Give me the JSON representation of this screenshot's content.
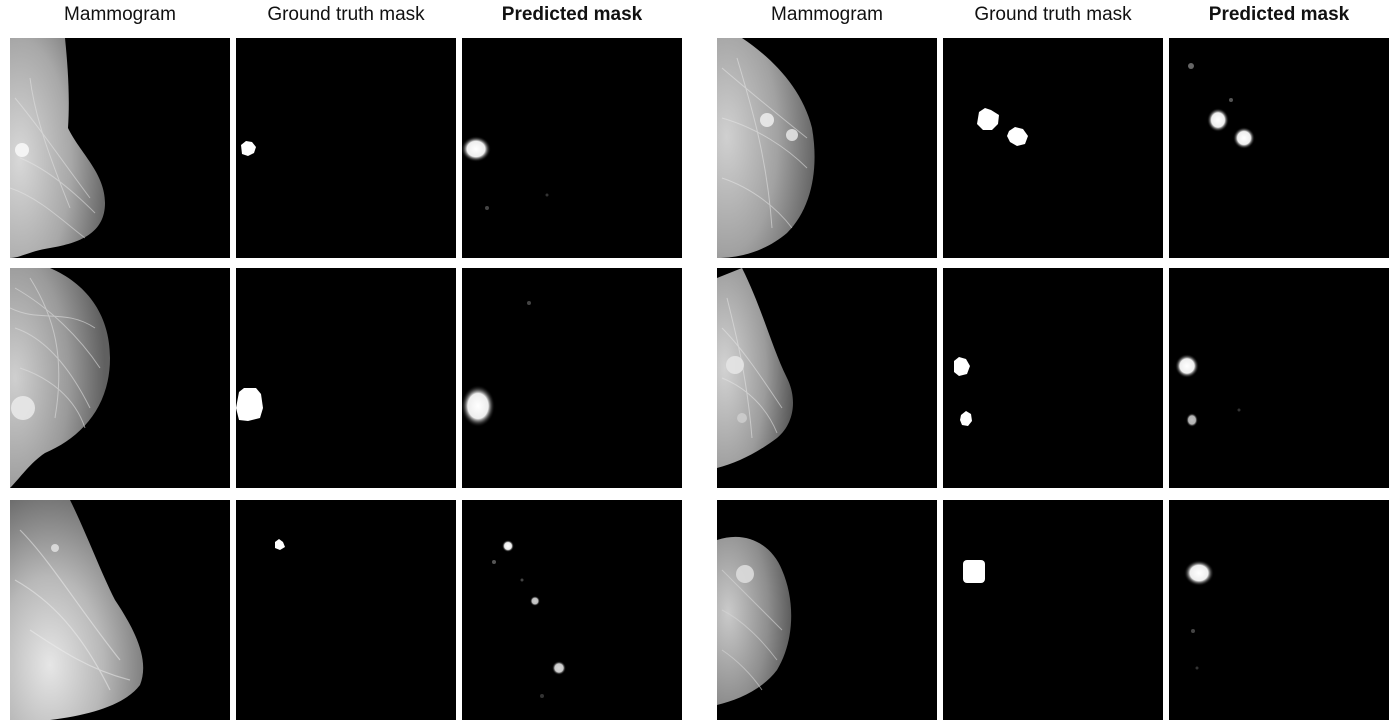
{
  "groups": [
    {
      "headers": {
        "mammogram": "Mammogram",
        "ground_truth": "Ground truth mask",
        "predicted": "Predicted mask"
      }
    },
    {
      "headers": {
        "mammogram": "Mammogram",
        "ground_truth": "Ground truth mask",
        "predicted": "Predicted mask"
      }
    }
  ]
}
